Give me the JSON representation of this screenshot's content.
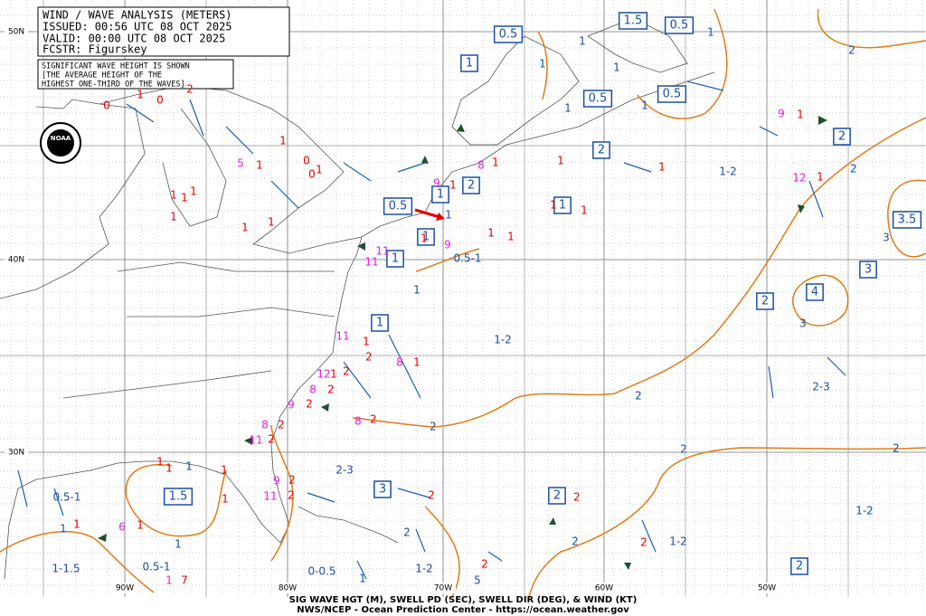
{
  "header": {
    "title": "WIND / WAVE ANALYSIS (METERS)",
    "issued": "ISSUED: 00:56 UTC 08 OCT 2025",
    "valid": "VALID:  00:00 UTC 08 OCT 2025",
    "fcstr": "FCSTR:  Figurskey"
  },
  "note": [
    "SIGNIFICANT WAVE HEIGHT IS SHOWN",
    "[THE AVERAGE HEIGHT OF THE",
    "HIGHEST ONE-THIRD OF THE WAVES]"
  ],
  "logo": "NOAA",
  "lat_labels": [
    "50N",
    "40N",
    "30N"
  ],
  "lon_labels": [
    "90W",
    "80W",
    "70W",
    "60W",
    "50W"
  ],
  "box_labels": [
    "1.5",
    "0.5",
    "0.5",
    "1",
    "0.5",
    "0.5",
    "2",
    "2",
    "2",
    "1",
    "0.5",
    "1",
    "1",
    "1",
    "3.5",
    "3",
    "4",
    "2",
    "1",
    "1.5",
    "3",
    "2",
    "2"
  ],
  "contour_labels": [
    "2",
    "1",
    "1",
    "1",
    "1",
    "1",
    "1",
    "1-2",
    "2",
    "3",
    "3",
    "1",
    "0.5-1",
    "1",
    "1-2",
    "2-3",
    "2",
    "2",
    "2",
    "2",
    "2-3",
    "0.5-1",
    "1-2",
    "1",
    "1",
    "2",
    "2",
    "1-2",
    "1",
    "1-1.5",
    "0.5-1",
    "0-0.5",
    "1-2",
    "1"
  ],
  "wind_labels": [
    "0",
    "1",
    "2",
    "0",
    "1",
    "0",
    "0",
    "1",
    "5",
    "1",
    "1",
    "1",
    "1",
    "1",
    "1",
    "1",
    "9",
    "8",
    "1",
    "1",
    "1",
    "1",
    "1",
    "1",
    "11",
    "11",
    "9",
    "9",
    "1",
    "12",
    "1",
    "1",
    "1",
    "1",
    "8",
    "1",
    "2",
    "1",
    "11",
    "12",
    "1",
    "2",
    "8",
    "2",
    "9",
    "2",
    "8",
    "2",
    "8",
    "2",
    "11",
    "2",
    "9",
    "2",
    "11",
    "2",
    "1",
    "1",
    "1",
    "1",
    "2",
    "2",
    "6",
    "1",
    "1",
    "2",
    "2",
    "5",
    "1",
    "7"
  ],
  "footer": [
    "SIG WAVE HGT (M), SWELL PD (SEC), SWELL DIR (DEG), & WIND (KT)",
    "NWS/NCEP - Ocean Prediction Center - https://ocean.weather.gov"
  ]
}
